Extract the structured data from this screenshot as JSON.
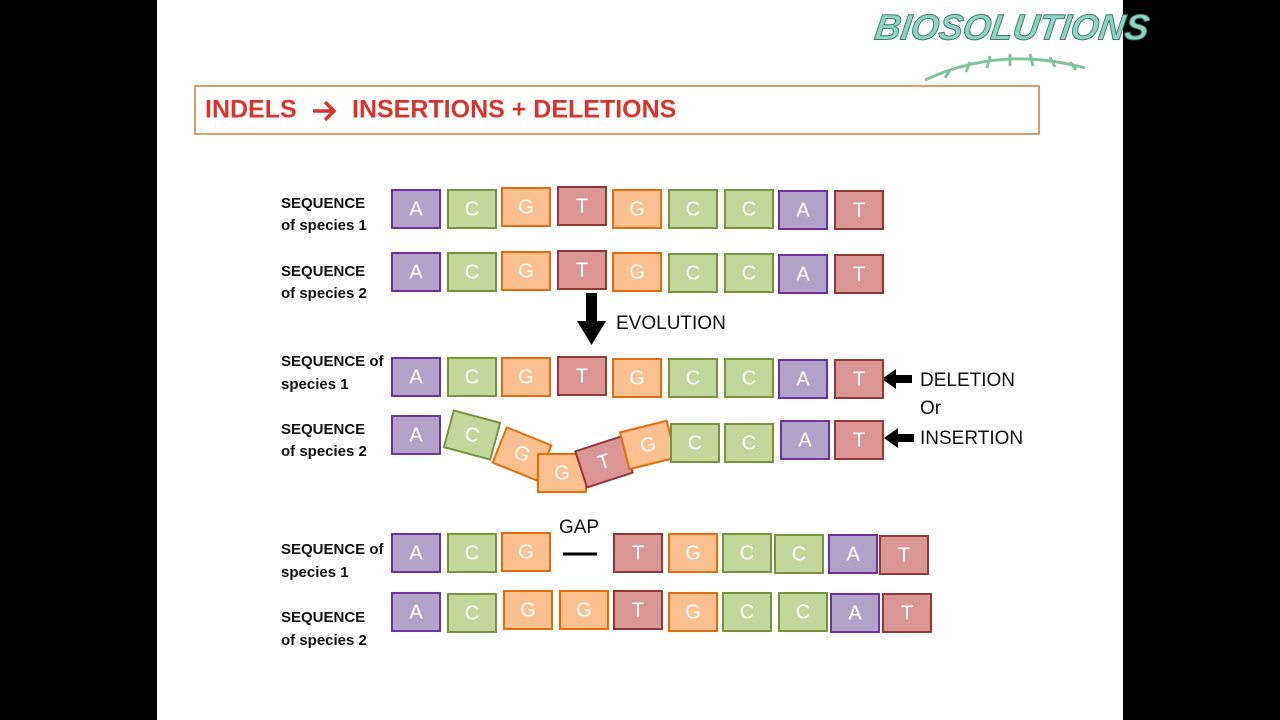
{
  "logo": "BIOSOLUTIONS",
  "title": {
    "left": "INDELS",
    "right": "INSERTIONS + DELETIONS"
  },
  "rows": [
    {
      "label": [
        "SEQUENCE",
        "of species  1"
      ],
      "bases": [
        "A",
        "C",
        "G",
        "T",
        "G",
        "C",
        "C",
        "A",
        "T"
      ]
    },
    {
      "label": [
        "SEQUENCE",
        "of species 2"
      ],
      "bases": [
        "A",
        "C",
        "G",
        "T",
        "G",
        "C",
        "C",
        "A",
        "T"
      ]
    },
    {
      "label": [
        "SEQUENCE of",
        "species  1"
      ],
      "bases": [
        "A",
        "C",
        "G",
        "T",
        "G",
        "C",
        "C",
        "A",
        "T"
      ]
    },
    {
      "label": [
        "SEQUENCE",
        "of species 2"
      ],
      "bases": [
        "A",
        "C",
        "G",
        "G",
        "T",
        "G",
        "C",
        "C",
        "A",
        "T"
      ]
    },
    {
      "label": [
        "SEQUENCE of",
        " species  1"
      ],
      "bases": [
        "A",
        "C",
        "G",
        "T",
        "G",
        "C",
        "C",
        "A",
        "T"
      ]
    },
    {
      "label": [
        "SEQUENCE",
        "of species 2"
      ],
      "bases": [
        "A",
        "C",
        "G",
        "G",
        "T",
        "G",
        "C",
        "C",
        "A",
        "T"
      ]
    }
  ],
  "evolution": "EVOLUTION",
  "deletion": "DELETION",
  "or": "Or",
  "insertion": "INSERTION",
  "gap": "GAP"
}
